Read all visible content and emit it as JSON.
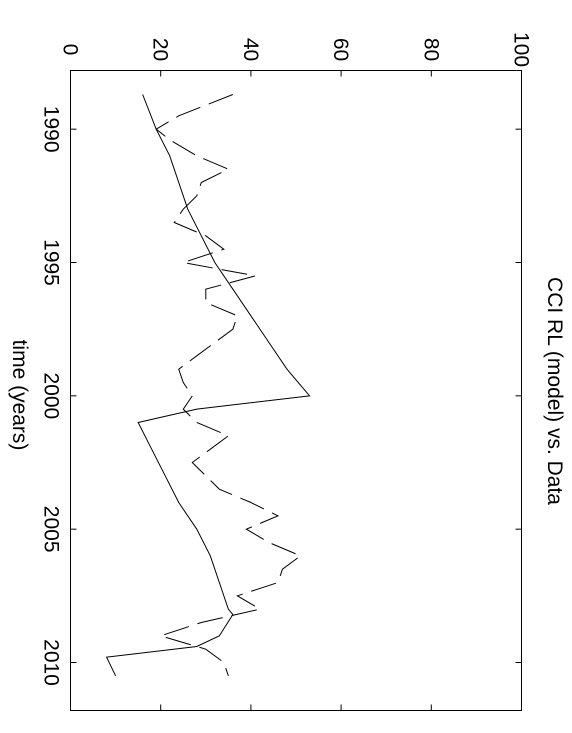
{
  "chart_data": {
    "type": "line",
    "title": "CCI RL (model) vs. Data",
    "xlabel": "time (years)",
    "ylabel": "",
    "xlim": [
      1987.8,
      2011.8
    ],
    "ylim": [
      0,
      100
    ],
    "x_ticks": [
      1990,
      1995,
      2000,
      2005,
      2010
    ],
    "y_ticks": [
      0,
      20,
      40,
      60,
      80,
      100
    ],
    "grid": false,
    "legend": "none",
    "series": [
      {
        "style": "solid",
        "x": [
          1988.7,
          1990.0,
          1991.0,
          1992.0,
          1993.0,
          1994.0,
          1995.0,
          1996.0,
          1997.0,
          1998.0,
          1999.0,
          2000.0,
          2000.5,
          2001.0,
          2002.0,
          2003.0,
          2004.0,
          2005.0,
          2006.0,
          2007.0,
          2008.0,
          2008.2,
          2009.0,
          2009.4,
          2009.8,
          2010.5
        ],
        "y": [
          16,
          19,
          22,
          24,
          26,
          29,
          32,
          36,
          40,
          44,
          48,
          53,
          28,
          15,
          18,
          21,
          24,
          28,
          31,
          33,
          35,
          36,
          33,
          28,
          8,
          10
        ]
      },
      {
        "style": "dashed",
        "x": [
          1988.7,
          1989.5,
          1990.0,
          1990.4,
          1991.0,
          1991.5,
          1992.0,
          1992.5,
          1993.0,
          1993.5,
          1994.0,
          1994.5,
          1995.0,
          1995.5,
          1996.0,
          1996.5,
          1997.0,
          1997.5,
          1998.0,
          1998.5,
          1999.0,
          1999.5,
          2000.0,
          2000.5,
          2001.0,
          2001.5,
          2002.0,
          2002.5,
          2003.0,
          2003.5,
          2004.0,
          2004.5,
          2005.0,
          2005.5,
          2006.0,
          2006.5,
          2007.0,
          2007.5,
          2008.0,
          2008.5,
          2009.0,
          2009.5,
          2010.0,
          2010.5
        ],
        "y": [
          36,
          24,
          19,
          22,
          28,
          35,
          29,
          28,
          25,
          23,
          30,
          34,
          25,
          41,
          30,
          30,
          37,
          36,
          32,
          28,
          24,
          25,
          27,
          25,
          28,
          35,
          31,
          27,
          30,
          33,
          40,
          46,
          39,
          44,
          51,
          47,
          46,
          37,
          42,
          29,
          20,
          30,
          34,
          35
        ]
      }
    ]
  }
}
